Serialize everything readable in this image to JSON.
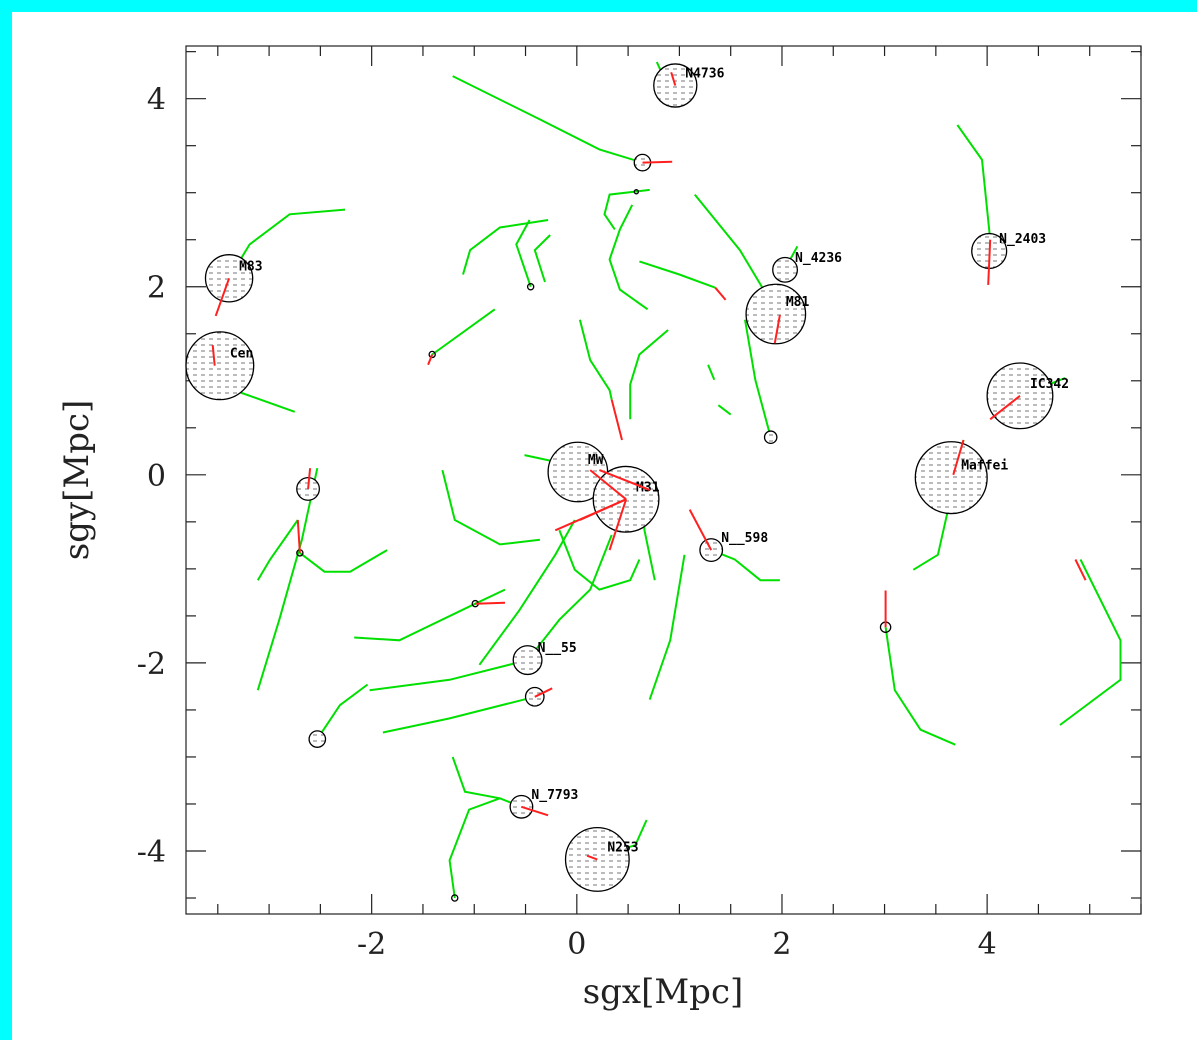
{
  "chart_data": {
    "type": "orbit",
    "xlabel": "sgx[Mpc]",
    "ylabel": "sgy[Mpc]",
    "xlim": [
      -3.81,
      5.5
    ],
    "ylim": [
      -4.67,
      4.56
    ],
    "xticks": [
      -2,
      0,
      2,
      4
    ],
    "yticks": [
      -4,
      -2,
      0,
      2,
      4
    ],
    "xminorticks": [
      -3.5,
      -3,
      -2.5,
      -1.5,
      -1,
      -0.5,
      0.5,
      1,
      1.5,
      2.5,
      3,
      3.5,
      4.5,
      5,
      5.5
    ],
    "yminorticks": [
      -4.5,
      -3.5,
      -3,
      -2.5,
      -1.5,
      -1,
      -0.5,
      0.5,
      1,
      1.5,
      2.5,
      3,
      3.5,
      4.5
    ],
    "track_color": "#00e000",
    "current_color": "#ff2020",
    "galaxy_color": "#000000",
    "galaxies": [
      {
        "label": "N4736",
        "x": 0.96,
        "y": 4.14,
        "r": 0.21
      },
      {
        "x": 0.64,
        "y": 3.32,
        "r": 0.08
      },
      {
        "label": "M83",
        "x": -3.39,
        "y": 2.09,
        "r": 0.23
      },
      {
        "label": "Cen",
        "x": -3.48,
        "y": 1.16,
        "r": 0.33
      },
      {
        "label": "N_4236",
        "x": 2.03,
        "y": 2.18,
        "r": 0.12
      },
      {
        "label": "M81",
        "x": 1.94,
        "y": 1.71,
        "r": 0.29
      },
      {
        "label": "N_2403",
        "x": 4.02,
        "y": 2.38,
        "r": 0.17
      },
      {
        "label": "IC342",
        "x": 4.32,
        "y": 0.84,
        "r": 0.32
      },
      {
        "label": "Maffei",
        "x": 3.65,
        "y": -0.03,
        "r": 0.35
      },
      {
        "label": "MW",
        "x": 0.01,
        "y": 0.03,
        "r": 0.29
      },
      {
        "label": "M31",
        "x": 0.48,
        "y": -0.26,
        "r": 0.32
      },
      {
        "label": "N__598",
        "x": 1.31,
        "y": -0.8,
        "r": 0.11
      },
      {
        "label": "N__55",
        "x": -0.48,
        "y": -1.97,
        "r": 0.14
      },
      {
        "x": -0.41,
        "y": -2.36,
        "r": 0.09
      },
      {
        "label": "N_7793",
        "x": -0.54,
        "y": -3.53,
        "r": 0.11
      },
      {
        "label": "N253",
        "x": 0.2,
        "y": -4.09,
        "r": 0.31
      },
      {
        "x": -2.62,
        "y": -0.15,
        "r": 0.11
      },
      {
        "x": -2.53,
        "y": -2.81,
        "r": 0.08
      },
      {
        "x": 1.89,
        "y": 0.4,
        "r": 0.06
      },
      {
        "x": 3.01,
        "y": -1.62,
        "r": 0.05
      },
      {
        "x": -1.41,
        "y": 1.28,
        "r": 0.03
      },
      {
        "x": -0.99,
        "y": -1.37,
        "r": 0.03
      },
      {
        "x": -1.19,
        "y": -4.5,
        "r": 0.03
      },
      {
        "x": -2.7,
        "y": -0.83,
        "r": 0.03
      },
      {
        "x": 0.58,
        "y": 3.01,
        "r": 0.02
      },
      {
        "x": -0.45,
        "y": 2.0,
        "r": 0.03
      }
    ],
    "tracks": [
      {
        "x": [
          -1.21,
          -0.36,
          0.22,
          0.64
        ],
        "y": [
          4.24,
          3.78,
          3.46,
          3.32
        ]
      },
      {
        "x": [
          0.78,
          0.86,
          0.93
        ],
        "y": [
          4.39,
          4.2,
          3.99
        ]
      },
      {
        "x": [
          -2.26,
          -2.8,
          -3.19,
          -3.39
        ],
        "y": [
          2.82,
          2.77,
          2.45,
          2.09
        ]
      },
      {
        "x": [
          -2.75,
          -3.29,
          -3.53
        ],
        "y": [
          0.67,
          0.88,
          1.16
        ]
      },
      {
        "x": [
          -0.8,
          -1.41
        ],
        "y": [
          1.76,
          1.28
        ]
      },
      {
        "x": [
          -0.28,
          -0.75,
          -1.04,
          -1.11
        ],
        "y": [
          2.71,
          2.63,
          2.39,
          2.13
        ]
      },
      {
        "x": [
          -0.46,
          -0.59,
          -0.45
        ],
        "y": [
          2.71,
          2.45,
          2.0
        ]
      },
      {
        "x": [
          -0.26,
          -0.41,
          -0.31
        ],
        "y": [
          2.55,
          2.39,
          2.05
        ]
      },
      {
        "x": [
          0.71,
          0.32,
          0.27,
          0.37
        ],
        "y": [
          3.03,
          2.98,
          2.77,
          2.61
        ]
      },
      {
        "x": [
          0.54,
          0.42,
          0.32,
          0.42,
          0.69
        ],
        "y": [
          2.87,
          2.61,
          2.29,
          1.97,
          1.76
        ]
      },
      {
        "x": [
          1.15,
          1.59,
          1.88,
          1.98
        ],
        "y": [
          2.98,
          2.39,
          1.86,
          1.7
        ]
      },
      {
        "x": [
          0.61,
          1.0,
          1.35
        ],
        "y": [
          2.27,
          2.13,
          1.99
        ]
      },
      {
        "x": [
          0.03,
          0.13,
          0.32,
          0.34
        ],
        "y": [
          1.65,
          1.22,
          0.9,
          0.8
        ]
      },
      {
        "x": [
          0.89,
          0.61,
          0.52,
          0.52
        ],
        "y": [
          1.54,
          1.28,
          0.96,
          0.59
        ]
      },
      {
        "x": [
          1.64,
          1.74,
          1.89
        ],
        "y": [
          1.65,
          1.01,
          0.4
        ]
      },
      {
        "x": [
          2.15,
          2.08,
          2.03
        ],
        "y": [
          2.43,
          2.29,
          2.18
        ]
      },
      {
        "x": [
          3.71,
          3.95,
          4.03
        ],
        "y": [
          3.72,
          3.35,
          2.5
        ]
      },
      {
        "x": [
          4.76,
          4.32
        ],
        "y": [
          1.03,
          0.84
        ]
      },
      {
        "x": [
          3.77,
          3.64,
          3.52,
          3.28
        ],
        "y": [
          0.37,
          -0.27,
          -0.85,
          -1.01
        ]
      },
      {
        "x": [
          3.01,
          3.1,
          3.35,
          3.69
        ],
        "y": [
          -1.62,
          -2.29,
          -2.71,
          -2.87
        ]
      },
      {
        "x": [
          4.91,
          5.3,
          5.3,
          4.71
        ],
        "y": [
          -0.9,
          -1.76,
          -2.18,
          -2.66
        ]
      },
      {
        "x": [
          -2.53,
          -2.68,
          -2.9,
          -3.11
        ],
        "y": [
          0.07,
          -0.69,
          -1.54,
          -2.29
        ]
      },
      {
        "x": [
          -2.72,
          -2.99,
          -3.11
        ],
        "y": [
          -0.48,
          -0.9,
          -1.12
        ]
      },
      {
        "x": [
          -2.7,
          -2.46,
          -2.21,
          -1.85
        ],
        "y": [
          -0.83,
          -1.03,
          -1.03,
          -0.8
        ]
      },
      {
        "x": [
          -1.31,
          -1.19,
          -0.75,
          -0.36
        ],
        "y": [
          0.05,
          -0.48,
          -0.74,
          -0.69
        ]
      },
      {
        "x": [
          -2.17,
          -1.73,
          -0.99,
          -0.7
        ],
        "y": [
          -1.73,
          -1.76,
          -1.37,
          -1.22
        ]
      },
      {
        "x": [
          -2.02,
          -1.24,
          -0.48
        ],
        "y": [
          -2.29,
          -2.18,
          -1.97
        ]
      },
      {
        "x": [
          -1.89,
          -1.24,
          -0.41
        ],
        "y": [
          -2.74,
          -2.59,
          -2.36
        ]
      },
      {
        "x": [
          -2.53,
          -2.31,
          -2.04
        ],
        "y": [
          -2.81,
          -2.45,
          -2.23
        ]
      },
      {
        "x": [
          -1.19,
          -1.24,
          -1.05,
          -0.75,
          -0.54
        ],
        "y": [
          -4.5,
          -4.1,
          -3.56,
          -3.44,
          -3.53
        ]
      },
      {
        "x": [
          -1.21,
          -1.09,
          -0.75
        ],
        "y": [
          -3.0,
          -3.37,
          -3.44
        ]
      },
      {
        "x": [
          -0.95,
          -0.56,
          -0.21,
          -0.02
        ],
        "y": [
          -2.02,
          -1.44,
          -0.85,
          -0.48
        ]
      },
      {
        "x": [
          -0.48,
          -0.17,
          0.13,
          0.34
        ],
        "y": [
          -1.97,
          -1.54,
          -1.22,
          -0.64
        ]
      },
      {
        "x": [
          -0.51,
          -0.17,
          0.01
        ],
        "y": [
          0.21,
          0.13,
          0.03
        ]
      },
      {
        "x": [
          -0.17,
          -0.02,
          0.22,
          0.52,
          0.61
        ],
        "y": [
          -0.59,
          -1.01,
          -1.22,
          -1.12,
          -0.9
        ]
      },
      {
        "x": [
          0.71,
          0.91,
          1.05
        ],
        "y": [
          -2.39,
          -1.76,
          -0.85
        ]
      },
      {
        "x": [
          0.61,
          0.66,
          0.76
        ],
        "y": [
          -0.05,
          -0.59,
          -1.12
        ]
      },
      {
        "x": [
          1.31,
          1.54,
          1.79,
          1.98
        ],
        "y": [
          -0.8,
          -0.9,
          -1.12,
          -1.12
        ]
      },
      {
        "x": [
          1.28,
          1.34
        ],
        "y": [
          1.17,
          1.01
        ]
      },
      {
        "x": [
          1.38,
          1.5
        ],
        "y": [
          0.74,
          0.64
        ]
      },
      {
        "x": [
          0.68,
          0.57,
          0.22
        ],
        "y": [
          -3.67,
          -3.94,
          -4.04
        ]
      }
    ],
    "currents": [
      {
        "x": [
          -3.39,
          -3.52
        ],
        "y": [
          2.09,
          1.69
        ]
      },
      {
        "x": [
          -3.53,
          -3.55
        ],
        "y": [
          1.16,
          1.38
        ]
      },
      {
        "x": [
          -1.41,
          -1.45
        ],
        "y": [
          1.28,
          1.17
        ]
      },
      {
        "x": [
          4.03,
          4.01
        ],
        "y": [
          2.5,
          2.02
        ]
      },
      {
        "x": [
          4.32,
          4.03
        ],
        "y": [
          0.84,
          0.59
        ]
      },
      {
        "x": [
          3.77,
          3.67
        ],
        "y": [
          0.37,
          0.0
        ]
      },
      {
        "x": [
          3.01,
          3.01
        ],
        "y": [
          -1.62,
          -1.23
        ]
      },
      {
        "x": [
          4.86,
          4.96
        ],
        "y": [
          -0.9,
          -1.12
        ]
      },
      {
        "x": [
          -0.99,
          -0.7
        ],
        "y": [
          -1.37,
          -1.36
        ]
      },
      {
        "x": [
          0.34,
          0.44
        ],
        "y": [
          0.8,
          0.37
        ]
      },
      {
        "x": [
          1.98,
          1.93
        ],
        "y": [
          1.7,
          1.4
        ]
      },
      {
        "x": [
          1.35,
          1.45
        ],
        "y": [
          1.99,
          1.86
        ]
      },
      {
        "x": [
          1.1,
          1.31
        ],
        "y": [
          -0.37,
          -0.8
        ]
      },
      {
        "x": [
          0.48,
          -0.21
        ],
        "y": [
          -0.26,
          -0.59
        ]
      },
      {
        "x": [
          0.48,
          0.03
        ],
        "y": [
          -0.26,
          -0.48
        ]
      },
      {
        "x": [
          0.48,
          0.13
        ],
        "y": [
          -0.26,
          0.05
        ]
      },
      {
        "x": [
          0.22,
          0.71
        ],
        "y": [
          0.05,
          -0.16
        ]
      },
      {
        "x": [
          0.48,
          0.32
        ],
        "y": [
          -0.26,
          -0.8
        ]
      },
      {
        "x": [
          -2.62,
          -2.6
        ],
        "y": [
          -0.15,
          0.07
        ]
      },
      {
        "x": [
          -2.7,
          -2.72
        ],
        "y": [
          -0.83,
          -0.48
        ]
      },
      {
        "x": [
          -0.54,
          -0.28
        ],
        "y": [
          -3.53,
          -3.62
        ]
      },
      {
        "x": [
          -0.41,
          -0.24
        ],
        "y": [
          -2.36,
          -2.27
        ]
      },
      {
        "x": [
          0.64,
          0.93
        ],
        "y": [
          3.32,
          3.33
        ]
      },
      {
        "x": [
          0.96,
          0.92
        ],
        "y": [
          4.14,
          4.28
        ]
      },
      {
        "x": [
          0.2,
          0.1
        ],
        "y": [
          -4.09,
          -4.05
        ]
      }
    ]
  }
}
